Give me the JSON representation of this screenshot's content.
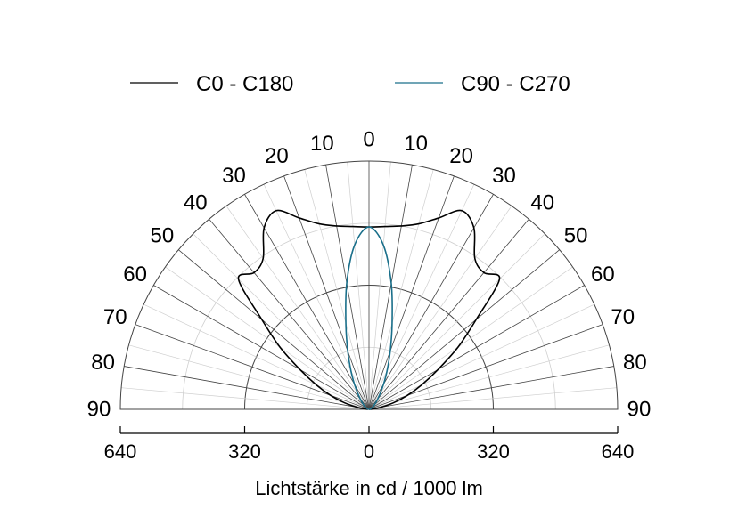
{
  "chart_data": {
    "type": "polar",
    "title": "",
    "xlabel": "Lichtstärke in cd / 1000 lm",
    "ylabel": "",
    "radial_max": 640,
    "radial_tick_labels": [
      "640",
      "320",
      "0",
      "320",
      "640"
    ],
    "angle_labels": [
      "0",
      "10",
      "20",
      "30",
      "40",
      "50",
      "60",
      "70",
      "80",
      "90"
    ],
    "legend_position": "top",
    "grid": true,
    "series": [
      {
        "name": "C0 - C180",
        "color": "#000000",
        "angles": [
          0,
          5,
          10,
          15,
          20,
          25,
          30,
          35,
          40,
          45,
          50,
          55,
          60,
          65,
          70,
          75,
          80,
          85,
          90
        ],
        "values": [
          470,
          473,
          480,
          495,
          525,
          565,
          540,
          475,
          460,
          475,
          360,
          280,
          205,
          150,
          105,
          65,
          30,
          10,
          2
        ]
      },
      {
        "name": "C90 - C270",
        "color": "#1a6f8a",
        "angles": [
          0,
          5,
          10,
          15,
          20,
          25,
          30,
          35,
          40,
          45,
          50,
          55,
          60,
          65,
          70,
          75,
          80,
          85,
          90
        ],
        "values": [
          470,
          425,
          330,
          230,
          160,
          110,
          75,
          50,
          35,
          25,
          18,
          14,
          10,
          7,
          5,
          4,
          3,
          2,
          1
        ]
      }
    ]
  }
}
